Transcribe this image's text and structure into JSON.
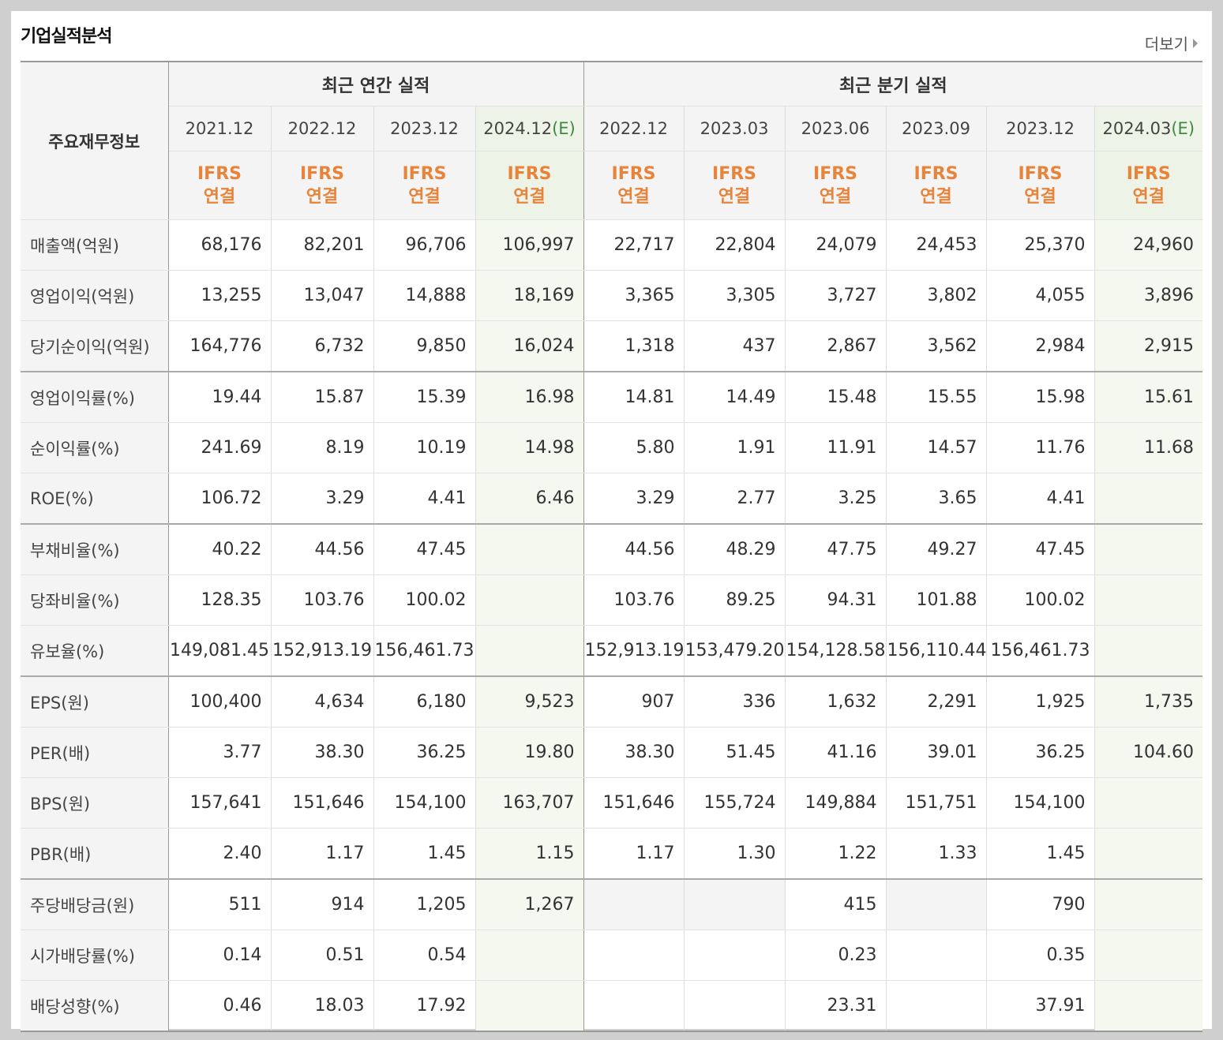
{
  "title": "기업실적분석",
  "more_label": "더보기",
  "header": {
    "main_label": "주요재무정보",
    "annual_title": "최근 연간 실적",
    "quarter_title": "최근 분기 실적",
    "estimate_mark": "(E)",
    "ifrs_line1": "IFRS",
    "ifrs_line2": "연결",
    "annual_dates": [
      "2021.12",
      "2022.12",
      "2023.12",
      "2024.12"
    ],
    "quarter_dates": [
      "2022.12",
      "2023.03",
      "2023.06",
      "2023.09",
      "2023.12",
      "2024.03"
    ]
  },
  "rows": [
    {
      "label": "매출액(억원)",
      "values": [
        "68,176",
        "82,201",
        "96,706",
        "106,997",
        "22,717",
        "22,804",
        "24,079",
        "24,453",
        "25,370",
        "24,960"
      ]
    },
    {
      "label": "영업이익(억원)",
      "values": [
        "13,255",
        "13,047",
        "14,888",
        "18,169",
        "3,365",
        "3,305",
        "3,727",
        "3,802",
        "4,055",
        "3,896"
      ]
    },
    {
      "label": "당기순이익(억원)",
      "values": [
        "164,776",
        "6,732",
        "9,850",
        "16,024",
        "1,318",
        "437",
        "2,867",
        "3,562",
        "2,984",
        "2,915"
      ]
    },
    {
      "label": "영업이익률(%)",
      "values": [
        "19.44",
        "15.87",
        "15.39",
        "16.98",
        "14.81",
        "14.49",
        "15.48",
        "15.55",
        "15.98",
        "15.61"
      ]
    },
    {
      "label": "순이익률(%)",
      "values": [
        "241.69",
        "8.19",
        "10.19",
        "14.98",
        "5.80",
        "1.91",
        "11.91",
        "14.57",
        "11.76",
        "11.68"
      ]
    },
    {
      "label": "ROE(%)",
      "values": [
        "106.72",
        "3.29",
        "4.41",
        "6.46",
        "3.29",
        "2.77",
        "3.25",
        "3.65",
        "4.41",
        ""
      ]
    },
    {
      "label": "부채비율(%)",
      "values": [
        "40.22",
        "44.56",
        "47.45",
        "",
        "44.56",
        "48.29",
        "47.75",
        "49.27",
        "47.45",
        ""
      ]
    },
    {
      "label": "당좌비율(%)",
      "values": [
        "128.35",
        "103.76",
        "100.02",
        "",
        "103.76",
        "89.25",
        "94.31",
        "101.88",
        "100.02",
        ""
      ]
    },
    {
      "label": "유보율(%)",
      "values": [
        "149,081.45",
        "152,913.19",
        "156,461.73",
        "",
        "152,913.19",
        "153,479.20",
        "154,128.58",
        "156,110.44",
        "156,461.73",
        ""
      ]
    },
    {
      "label": "EPS(원)",
      "values": [
        "100,400",
        "4,634",
        "6,180",
        "9,523",
        "907",
        "336",
        "1,632",
        "2,291",
        "1,925",
        "1,735"
      ]
    },
    {
      "label": "PER(배)",
      "values": [
        "3.77",
        "38.30",
        "36.25",
        "19.80",
        "38.30",
        "51.45",
        "41.16",
        "39.01",
        "36.25",
        "104.60"
      ]
    },
    {
      "label": "BPS(원)",
      "values": [
        "157,641",
        "151,646",
        "154,100",
        "163,707",
        "151,646",
        "155,724",
        "149,884",
        "151,751",
        "154,100",
        ""
      ]
    },
    {
      "label": "PBR(배)",
      "values": [
        "2.40",
        "1.17",
        "1.45",
        "1.15",
        "1.17",
        "1.30",
        "1.22",
        "1.33",
        "1.45",
        ""
      ]
    },
    {
      "label": "주당배당금(원)",
      "values": [
        "511",
        "914",
        "1,205",
        "1,267",
        "",
        "",
        "415",
        "",
        "790",
        ""
      ]
    },
    {
      "label": "시가배당률(%)",
      "values": [
        "0.14",
        "0.51",
        "0.54",
        "",
        "",
        "",
        "0.23",
        "",
        "0.35",
        ""
      ]
    },
    {
      "label": "배당성향(%)",
      "values": [
        "0.46",
        "18.03",
        "17.92",
        "",
        "",
        "",
        "23.31",
        "",
        "37.91",
        ""
      ]
    }
  ]
}
